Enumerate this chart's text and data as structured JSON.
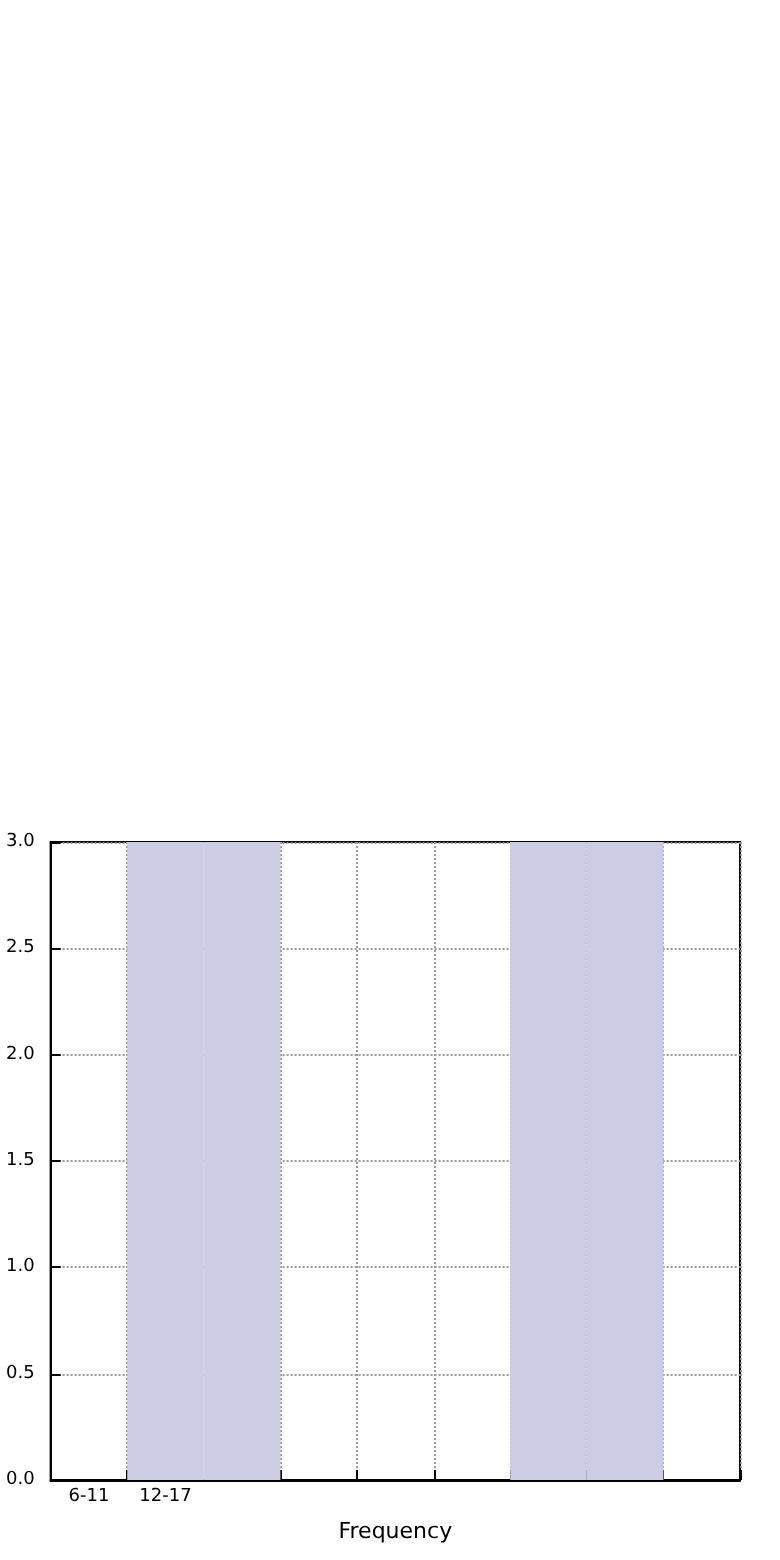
{
  "chart_data": {
    "type": "bar",
    "xlabel": "Frequency",
    "categories": [
      "6-11",
      "12-17",
      null,
      null,
      null,
      null,
      null,
      null,
      null
    ],
    "values": [
      0,
      3,
      3,
      0,
      0,
      0,
      3,
      3,
      0
    ],
    "color": "#cccce5",
    "ylim": [
      0,
      3
    ],
    "yticks": [
      {
        "value": 0,
        "label": "0.0"
      },
      {
        "value": 0.5,
        "label": "0.5"
      },
      {
        "value": 1,
        "label": "1.0"
      },
      {
        "value": 1.5,
        "label": "1.5"
      },
      {
        "value": 2,
        "label": "2.0"
      },
      {
        "value": 2.5,
        "label": "2.5"
      },
      {
        "value": 3,
        "label": "3.0"
      }
    ],
    "grid": true
  }
}
